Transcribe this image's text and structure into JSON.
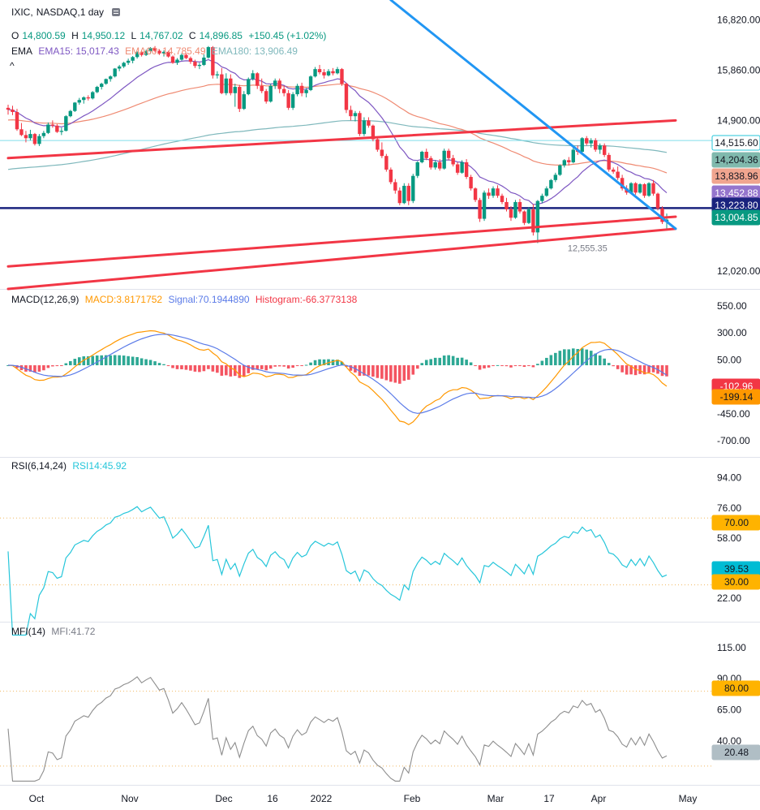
{
  "legend": {
    "symbol": "IXIC",
    "symbol_sep": ",",
    "interval": "NASDAQ,1 day",
    "ohlc": {
      "o_label": "O",
      "o": "14,800.59",
      "h_label": "H",
      "h": "14,950.12",
      "l_label": "L",
      "l": "14,767.02",
      "c_label": "C",
      "c": "14,896.85",
      "change": "+150.45 (+1.02%)"
    },
    "ema": {
      "label": "EMA",
      "ema15": "EMA15: 15,017.43",
      "ema60": "EMA60: 14,785.49",
      "ema180": "EMA180: 13,906.49"
    },
    "collapse_glyph": "^"
  },
  "macd_legend": {
    "label": "MACD(12,26,9)",
    "macd": "MACD:3.8171752",
    "signal": "Signal:70.1944890",
    "histogram": "Histogram:-66.3773138"
  },
  "rsi_legend": {
    "label": "RSI(6,14,24)",
    "rsi": "RSI14:45.92"
  },
  "mfi_legend": {
    "label": "MFI(14)",
    "mfi": "MFI:41.72"
  },
  "colors": {
    "up": "#089981",
    "down": "#f23645",
    "ema15": "#7e57c2",
    "ema60": "#ef8a72",
    "ema180": "#7fb8bc",
    "trend_red": "#f23645",
    "trend_blue": "#2196f3",
    "hline": "#1a237e",
    "macd": "#ff9800",
    "signal": "#5b7be8",
    "rsi": "#26c6da",
    "mfi": "#8d8d8d"
  },
  "price_tags": [
    {
      "label": "14,515.60",
      "bg": "#ffffff",
      "fg": "#131722",
      "border": "#26c6da"
    },
    {
      "label": "14,204.36",
      "bg": "#80b9ad",
      "fg": "#131722"
    },
    {
      "label": "13,838.96",
      "bg": "#f0a58f",
      "fg": "#131722"
    },
    {
      "label": "13,452.88",
      "bg": "#9575cd",
      "fg": "#ffffff"
    },
    {
      "label": "13,223.80",
      "bg": "#1a237e",
      "fg": "#ffffff"
    },
    {
      "label": "13,004.85",
      "bg": "#089981",
      "fg": "#ffffff"
    }
  ],
  "macd_tags": [
    {
      "label": "-102.96",
      "bg": "#f23645",
      "fg": "#ffffff"
    },
    {
      "label": "-199.14",
      "bg": "#ff9800",
      "fg": "#131722"
    }
  ],
  "rsi_tags": [
    {
      "label": "70.00",
      "bg": "#ffb300",
      "fg": "#131722"
    },
    {
      "label": "39.53",
      "bg": "#00bcd4",
      "fg": "#131722"
    },
    {
      "label": "30.00",
      "bg": "#ffb300",
      "fg": "#131722"
    }
  ],
  "mfi_tags": [
    {
      "label": "80.00",
      "bg": "#ffb300",
      "fg": "#131722"
    },
    {
      "label": "20.48",
      "bg": "#b0bec5",
      "fg": "#131722"
    }
  ],
  "low_annotation": "12,555.35",
  "chart_data": [
    {
      "type": "candlestick",
      "name": "IXIC",
      "y_ticks": [
        "16,820.00",
        "15,860.00",
        "14,900.00",
        "12,020.00"
      ],
      "y_tick_values": [
        16820,
        15860,
        14900,
        12020
      ],
      "ylim": [
        11680,
        17200
      ],
      "x_labels": [
        "Oct",
        "Nov",
        "Dec",
        "16",
        "2022",
        "Feb",
        "Mar",
        "17",
        "Apr",
        "May"
      ],
      "candles": [
        [
          15140,
          15200,
          15010,
          15105
        ],
        [
          15105,
          15180,
          15000,
          15060
        ],
        [
          15060,
          15120,
          14700,
          14730
        ],
        [
          14730,
          14850,
          14600,
          14620
        ],
        [
          14620,
          14700,
          14480,
          14560
        ],
        [
          14560,
          14720,
          14520,
          14640
        ],
        [
          14640,
          14660,
          14420,
          14450
        ],
        [
          14450,
          14640,
          14410,
          14600
        ],
        [
          14600,
          14700,
          14560,
          14660
        ],
        [
          14660,
          14860,
          14640,
          14820
        ],
        [
          14820,
          14900,
          14760,
          14800
        ],
        [
          14800,
          14830,
          14660,
          14680
        ],
        [
          14680,
          14760,
          14620,
          14700
        ],
        [
          14700,
          15000,
          14690,
          14980
        ],
        [
          14980,
          15100,
          14960,
          15080
        ],
        [
          15080,
          15250,
          15060,
          15240
        ],
        [
          15240,
          15330,
          15200,
          15290
        ],
        [
          15290,
          15360,
          15220,
          15340
        ],
        [
          15340,
          15380,
          15280,
          15320
        ],
        [
          15320,
          15460,
          15300,
          15440
        ],
        [
          15440,
          15560,
          15420,
          15540
        ],
        [
          15540,
          15620,
          15490,
          15600
        ],
        [
          15600,
          15700,
          15580,
          15690
        ],
        [
          15690,
          15760,
          15640,
          15740
        ],
        [
          15740,
          15900,
          15720,
          15890
        ],
        [
          15890,
          15960,
          15840,
          15930
        ],
        [
          15930,
          16020,
          15900,
          16000
        ],
        [
          16000,
          16080,
          15960,
          16040
        ],
        [
          16040,
          16130,
          15990,
          16110
        ],
        [
          16110,
          16220,
          16080,
          16200
        ],
        [
          16200,
          16240,
          16120,
          16150
        ],
        [
          16150,
          16250,
          16130,
          16220
        ],
        [
          16220,
          16300,
          16170,
          16280
        ],
        [
          16280,
          16320,
          16200,
          16230
        ],
        [
          16230,
          16260,
          16150,
          16180
        ],
        [
          16180,
          16240,
          16120,
          16210
        ],
        [
          16210,
          16230,
          16100,
          16120
        ],
        [
          16120,
          16140,
          15980,
          16000
        ],
        [
          16000,
          16090,
          15960,
          16060
        ],
        [
          16060,
          16180,
          16040,
          16150
        ],
        [
          16150,
          16180,
          16070,
          16090
        ],
        [
          16090,
          16120,
          15980,
          16020
        ],
        [
          16020,
          16060,
          15900,
          15940
        ],
        [
          15940,
          16000,
          15880,
          15960
        ],
        [
          15960,
          16160,
          15940,
          16100
        ],
        [
          16100,
          16320,
          16080,
          16300
        ],
        [
          16300,
          16320,
          15700,
          15760
        ],
        [
          15760,
          15840,
          15700,
          15780
        ],
        [
          15780,
          15900,
          15400,
          15420
        ],
        [
          15420,
          15800,
          15380,
          15700
        ],
        [
          15700,
          15780,
          15380,
          15420
        ],
        [
          15420,
          15600,
          15160,
          15540
        ],
        [
          15540,
          15580,
          15060,
          15120
        ],
        [
          15120,
          15460,
          15100,
          15400
        ],
        [
          15400,
          15720,
          15380,
          15690
        ],
        [
          15690,
          15860,
          15660,
          15800
        ],
        [
          15800,
          15820,
          15500,
          15560
        ],
        [
          15560,
          15700,
          15420,
          15460
        ],
        [
          15460,
          15500,
          15220,
          15260
        ],
        [
          15260,
          15600,
          15240,
          15560
        ],
        [
          15560,
          15700,
          15500,
          15660
        ],
        [
          15660,
          15700,
          15420,
          15500
        ],
        [
          15500,
          15560,
          15360,
          15420
        ],
        [
          15420,
          15480,
          15100,
          15140
        ],
        [
          15140,
          15440,
          15100,
          15400
        ],
        [
          15400,
          15600,
          15360,
          15560
        ],
        [
          15560,
          15620,
          15360,
          15420
        ],
        [
          15420,
          15520,
          15340,
          15480
        ],
        [
          15480,
          15760,
          15460,
          15740
        ],
        [
          15740,
          15920,
          15720,
          15880
        ],
        [
          15880,
          15960,
          15780,
          15820
        ],
        [
          15820,
          15880,
          15700,
          15760
        ],
        [
          15760,
          15880,
          15740,
          15840
        ],
        [
          15840,
          15900,
          15760,
          15800
        ],
        [
          15800,
          15920,
          15780,
          15880
        ],
        [
          15880,
          15900,
          15560,
          15600
        ],
        [
          15600,
          15620,
          15040,
          15100
        ],
        [
          15100,
          15180,
          14900,
          14980
        ],
        [
          14980,
          15080,
          14880,
          15040
        ],
        [
          15040,
          15080,
          14600,
          14640
        ],
        [
          14640,
          14960,
          14600,
          14900
        ],
        [
          14900,
          14960,
          14760,
          14800
        ],
        [
          14800,
          14820,
          14500,
          14540
        ],
        [
          14540,
          14580,
          14300,
          14340
        ],
        [
          14340,
          14480,
          14180,
          14220
        ],
        [
          14220,
          14260,
          13920,
          13960
        ],
        [
          13960,
          14000,
          13680,
          13720
        ],
        [
          13720,
          13780,
          13500,
          13560
        ],
        [
          13560,
          13620,
          13280,
          13320
        ],
        [
          13320,
          13700,
          13300,
          13650
        ],
        [
          13650,
          13700,
          13280,
          13360
        ],
        [
          13360,
          13880,
          13320,
          13840
        ],
        [
          13840,
          14120,
          13800,
          14100
        ],
        [
          14100,
          14320,
          14080,
          14300
        ],
        [
          14300,
          14360,
          14140,
          14180
        ],
        [
          14180,
          14220,
          13960,
          14000
        ],
        [
          14000,
          14140,
          13960,
          14100
        ],
        [
          14100,
          14160,
          13940,
          13980
        ],
        [
          13980,
          14360,
          13960,
          14320
        ],
        [
          14320,
          14360,
          14140,
          14180
        ],
        [
          14180,
          14240,
          14020,
          14060
        ],
        [
          14060,
          14100,
          13860,
          13900
        ],
        [
          13900,
          14140,
          13880,
          14100
        ],
        [
          14100,
          14160,
          13780,
          13820
        ],
        [
          13820,
          13860,
          13560,
          13600
        ],
        [
          13600,
          13620,
          13340,
          13380
        ],
        [
          13380,
          13420,
          12960,
          13020
        ],
        [
          13020,
          13560,
          12980,
          13520
        ],
        [
          13520,
          13600,
          13400,
          13460
        ],
        [
          13460,
          13640,
          13420,
          13600
        ],
        [
          13600,
          13660,
          13420,
          13460
        ],
        [
          13460,
          13500,
          13300,
          13340
        ],
        [
          13340,
          13420,
          13160,
          13200
        ],
        [
          13200,
          13260,
          12980,
          13040
        ],
        [
          13040,
          13380,
          13020,
          13340
        ],
        [
          13340,
          13400,
          13120,
          13160
        ],
        [
          13160,
          13180,
          12900,
          12940
        ],
        [
          12940,
          13240,
          12920,
          13200
        ],
        [
          13200,
          13300,
          12700,
          12760
        ],
        [
          12760,
          13380,
          12556,
          13360
        ],
        [
          13360,
          13500,
          13320,
          13460
        ],
        [
          13460,
          13640,
          13440,
          13600
        ],
        [
          13600,
          13780,
          13580,
          13760
        ],
        [
          13760,
          13900,
          13720,
          13860
        ],
        [
          13860,
          14060,
          13840,
          14040
        ],
        [
          14040,
          14160,
          14000,
          14140
        ],
        [
          14140,
          14200,
          14040,
          14100
        ],
        [
          14100,
          14380,
          14080,
          14340
        ],
        [
          14340,
          14420,
          14240,
          14300
        ],
        [
          14300,
          14580,
          14280,
          14560
        ],
        [
          14560,
          14600,
          14420,
          14460
        ],
        [
          14460,
          14560,
          14380,
          14520
        ],
        [
          14520,
          14560,
          14300,
          14340
        ],
        [
          14340,
          14460,
          14260,
          14420
        ],
        [
          14420,
          14460,
          14200,
          14240
        ],
        [
          14240,
          14280,
          13920,
          13960
        ],
        [
          13960,
          14000,
          13880,
          13920
        ],
        [
          13920,
          14020,
          13760,
          13800
        ],
        [
          13800,
          13860,
          13560,
          13600
        ],
        [
          13600,
          13660,
          13480,
          13520
        ],
        [
          13520,
          13720,
          13500,
          13700
        ],
        [
          13700,
          13720,
          13480,
          13520
        ],
        [
          13520,
          13700,
          13500,
          13680
        ],
        [
          13680,
          13700,
          13420,
          13460
        ],
        [
          13460,
          13720,
          13440,
          13700
        ],
        [
          13700,
          13760,
          13460,
          13500
        ],
        [
          13500,
          13520,
          13180,
          13220
        ],
        [
          13220,
          13260,
          12920,
          12960
        ],
        [
          12960,
          13120,
          12800,
          13004
        ]
      ],
      "ema15_end": 15017.43,
      "ema60_end": 14785.49,
      "ema180_end": 13906.49,
      "hlines": [
        13223.8,
        14515.6
      ],
      "trendlines": [
        {
          "color": "red",
          "from": [
            0,
            14180
          ],
          "to": [
            150,
            14900
          ]
        },
        {
          "color": "red",
          "from": [
            0,
            12110
          ],
          "to": [
            150,
            13060
          ]
        },
        {
          "color": "red",
          "from": [
            0,
            11680
          ],
          "to": [
            150,
            12830
          ]
        },
        {
          "color": "blue",
          "from": [
            86,
            17200
          ],
          "to": [
            150,
            12830
          ]
        }
      ]
    },
    {
      "type": "line",
      "name": "MACD",
      "y_ticks": [
        "550.00",
        "300.00",
        "50.00",
        "-450.00",
        "-700.00"
      ],
      "y_tick_values": [
        550,
        300,
        50,
        -450,
        -700
      ],
      "ylim": [
        -850,
        700
      ]
    },
    {
      "type": "line",
      "name": "RSI",
      "y_ticks": [
        "94.00",
        "76.00",
        "58.00",
        "22.00"
      ],
      "y_tick_values": [
        94,
        76,
        58,
        22
      ],
      "ylim": [
        8,
        106
      ],
      "bands": [
        30,
        70
      ]
    },
    {
      "type": "line",
      "name": "MFI",
      "y_ticks": [
        "115.00",
        "90.00",
        "65.00",
        "40.00"
      ],
      "y_tick_values": [
        115,
        90,
        65,
        40
      ],
      "ylim": [
        5,
        135
      ],
      "bands": [
        20,
        80
      ]
    }
  ]
}
